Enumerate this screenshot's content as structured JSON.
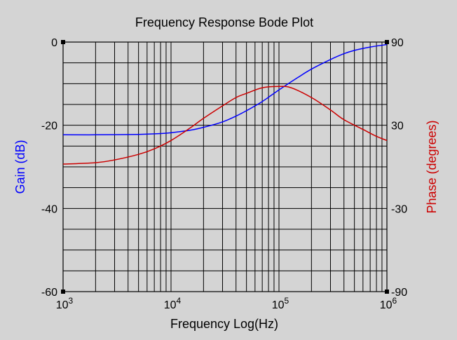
{
  "chart_data": {
    "type": "line",
    "title": "Frequency Response Bode Plot",
    "xlabel": "Frequency Log(Hz)",
    "ylabel_left": "Gain (dB)",
    "ylabel_right": "Phase (degrees)",
    "x_scale": "log",
    "xlim": [
      1000,
      1000000
    ],
    "x_ticks": [
      {
        "value": 1000,
        "base": "10",
        "exp": "3"
      },
      {
        "value": 10000,
        "base": "10",
        "exp": "4"
      },
      {
        "value": 100000,
        "base": "10",
        "exp": "5"
      },
      {
        "value": 1000000,
        "base": "10",
        "exp": "6"
      }
    ],
    "ylim_left": [
      -60,
      0
    ],
    "y_ticks_left": [
      {
        "value": 0,
        "label": "0"
      },
      {
        "value": -20,
        "label": "-20"
      },
      {
        "value": -40,
        "label": "-40"
      },
      {
        "value": -60,
        "label": "-60"
      }
    ],
    "ylim_right": [
      -90,
      90
    ],
    "y_ticks_right": [
      {
        "value": 90,
        "label": "90"
      },
      {
        "value": 30,
        "label": "30"
      },
      {
        "value": -30,
        "label": "-30"
      },
      {
        "value": -90,
        "label": "-90"
      }
    ],
    "grid": true,
    "series": [
      {
        "axis": "left",
        "color": "#0000ff",
        "points": [
          [
            1000,
            -22.3
          ],
          [
            2000,
            -22.3
          ],
          [
            5000,
            -22.2
          ],
          [
            8000,
            -22.0
          ],
          [
            10000,
            -21.8
          ],
          [
            15000,
            -21.2
          ],
          [
            20000,
            -20.5
          ],
          [
            30000,
            -19.2
          ],
          [
            40000,
            -17.8
          ],
          [
            50000,
            -16.5
          ],
          [
            70000,
            -14.3
          ],
          [
            100000,
            -11.5
          ],
          [
            150000,
            -8.5
          ],
          [
            200000,
            -6.5
          ],
          [
            300000,
            -4.2
          ],
          [
            400000,
            -2.8
          ],
          [
            500000,
            -2.0
          ],
          [
            700000,
            -1.2
          ],
          [
            1000000,
            -0.6
          ]
        ]
      },
      {
        "axis": "right",
        "color": "#cc0000",
        "points": [
          [
            1000,
            2
          ],
          [
            2000,
            3
          ],
          [
            3000,
            5
          ],
          [
            5000,
            9
          ],
          [
            7000,
            13
          ],
          [
            10000,
            19
          ],
          [
            15000,
            28
          ],
          [
            20000,
            35
          ],
          [
            30000,
            44
          ],
          [
            40000,
            50
          ],
          [
            50000,
            53
          ],
          [
            70000,
            57
          ],
          [
            100000,
            58
          ],
          [
            130000,
            57
          ],
          [
            200000,
            50
          ],
          [
            300000,
            41
          ],
          [
            400000,
            34
          ],
          [
            600000,
            27
          ],
          [
            800000,
            22
          ],
          [
            1000000,
            19
          ]
        ]
      }
    ]
  }
}
